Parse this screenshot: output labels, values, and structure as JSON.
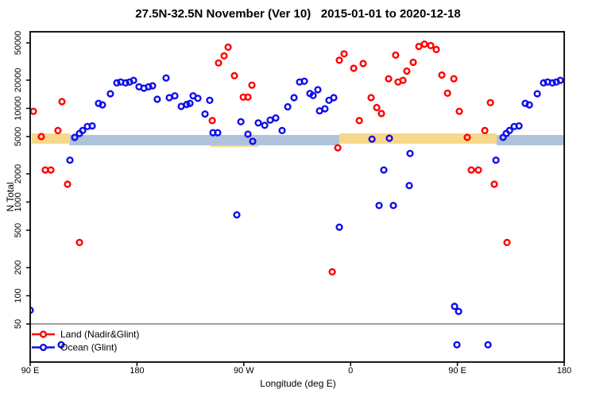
{
  "title": "27.5N-32.5N November (Ver 10)   2015-01-01 to 2020-12-18",
  "axes": {
    "x": {
      "label": "Longitude (deg E)",
      "ticks": [
        {
          "deg": 90,
          "label": "90 E"
        },
        {
          "deg": 180,
          "label": "180"
        },
        {
          "deg": 270,
          "label": "90 W"
        },
        {
          "deg": 360,
          "label": "0"
        },
        {
          "deg": 450,
          "label": "90 E"
        },
        {
          "deg": 540,
          "label": "180"
        }
      ]
    },
    "y": {
      "label": "N Total",
      "scale": "log",
      "ticks": [
        50000,
        20000,
        10000,
        5000,
        2000,
        1000,
        500,
        200,
        100,
        50
      ]
    }
  },
  "legend": {
    "items": [
      {
        "label": "Land (Nadir&Glint)",
        "color": "#FF0000"
      },
      {
        "label": "Ocean (Glint)",
        "color": "#0F0FEB"
      }
    ]
  },
  "colors": {
    "land": "#FF0000",
    "ocean": "#0F0FEB",
    "band_land": "#F7D78C",
    "band_ocean": "#AEC3DB",
    "threshold": "#808080",
    "axis": "#000000",
    "background": "#FFFFFF"
  },
  "chart_data": {
    "type": "scatter",
    "title": "27.5N-32.5N November (Ver 10)   2015-01-01 to 2020-12-18",
    "xlabel": "Longitude (deg E)",
    "ylabel": "N Total",
    "x_axis_deg_range": [
      90,
      540
    ],
    "x_axis_note": "Axis spans 450 deg of longitude eastward: 90E -> 180 -> 90W -> 0 -> 90E -> 180; the 90E-180 segment repeats at both ends",
    "y_scale": "log",
    "ylim": [
      20,
      55000
    ],
    "grid": false,
    "legend_position": "bottom-left",
    "threshold_line": {
      "n": 50
    },
    "bands": {
      "approx_n_range": [
        4200,
        5200
      ],
      "ocean_segments_deg": [
        [
          122.8,
          350.5
        ],
        [
          483.1,
          540.0
        ]
      ],
      "land_segments_deg": [
        [
          91.3,
          123.5
        ],
        [
          350.5,
          483.1
        ]
      ],
      "land_under_segments_deg": [
        [
          242.0,
          282.2
        ]
      ]
    },
    "series": [
      {
        "name": "Land (Nadir&Glint)",
        "color": "#FF0000",
        "points": [
          [
            92.7,
            9300
          ],
          [
            99.4,
            5000
          ],
          [
            102.7,
            2200
          ],
          [
            107.4,
            2200
          ],
          [
            113.4,
            5800
          ],
          [
            116.8,
            11800
          ],
          [
            121.5,
            1550
          ],
          [
            131.5,
            370
          ],
          [
            243.4,
            7400
          ],
          [
            248.7,
            30500
          ],
          [
            253.4,
            36300
          ],
          [
            256.8,
            45000
          ],
          [
            262.1,
            22300
          ],
          [
            269.5,
            13200
          ],
          [
            273.5,
            13200
          ],
          [
            276.8,
            17700
          ],
          [
            344.5,
            180
          ],
          [
            349.2,
            3800
          ],
          [
            350.5,
            32600
          ],
          [
            354.5,
            38200
          ],
          [
            362.6,
            26800
          ],
          [
            367.3,
            7400
          ],
          [
            370.6,
            30100
          ],
          [
            377.3,
            13000
          ],
          [
            382.0,
            10200
          ],
          [
            386.0,
            8800
          ],
          [
            392.0,
            20700
          ],
          [
            398.0,
            37000
          ],
          [
            400.0,
            19100
          ],
          [
            404.1,
            19900
          ],
          [
            407.4,
            25000
          ],
          [
            412.8,
            31000
          ],
          [
            417.5,
            45800
          ],
          [
            422.2,
            48500
          ],
          [
            427.5,
            46800
          ],
          [
            432.2,
            42400
          ],
          [
            436.9,
            22700
          ],
          [
            441.6,
            14500
          ],
          [
            447.0,
            20700
          ],
          [
            451.6,
            9300
          ],
          [
            458.3,
            4900
          ],
          [
            461.7,
            2200
          ],
          [
            467.7,
            2200
          ],
          [
            473.1,
            5800
          ],
          [
            477.8,
            11500
          ],
          [
            481.1,
            1550
          ],
          [
            491.8,
            370
          ]
        ]
      },
      {
        "name": "Ocean (Glint)",
        "color": "#0F0FEB",
        "points": [
          [
            90.0,
            70
          ],
          [
            116.1,
            30
          ],
          [
            123.5,
            2800
          ],
          [
            127.5,
            4900
          ],
          [
            131.5,
            5400
          ],
          [
            134.2,
            5800
          ],
          [
            138.2,
            6400
          ],
          [
            142.2,
            6500
          ],
          [
            147.6,
            11300
          ],
          [
            150.9,
            10900
          ],
          [
            157.6,
            14300
          ],
          [
            163.0,
            18700
          ],
          [
            166.3,
            19100
          ],
          [
            170.4,
            18700
          ],
          [
            173.7,
            19100
          ],
          [
            177.1,
            19900
          ],
          [
            181.7,
            17000
          ],
          [
            185.8,
            16400
          ],
          [
            189.8,
            17000
          ],
          [
            193.1,
            17400
          ],
          [
            197.1,
            12500
          ],
          [
            204.5,
            21100
          ],
          [
            207.2,
            13000
          ],
          [
            211.9,
            13600
          ],
          [
            217.2,
            10500
          ],
          [
            221.9,
            11000
          ],
          [
            224.6,
            11300
          ],
          [
            227.3,
            13600
          ],
          [
            231.3,
            12800
          ],
          [
            237.3,
            8700
          ],
          [
            241.3,
            12200
          ],
          [
            244.0,
            5500
          ],
          [
            248.0,
            5500
          ],
          [
            264.1,
            730
          ],
          [
            267.5,
            7200
          ],
          [
            273.5,
            5300
          ],
          [
            277.5,
            4450
          ],
          [
            282.2,
            7000
          ],
          [
            287.6,
            6600
          ],
          [
            292.2,
            7500
          ],
          [
            296.9,
            7900
          ],
          [
            302.3,
            5800
          ],
          [
            307.0,
            10400
          ],
          [
            312.3,
            13000
          ],
          [
            317.0,
            19100
          ],
          [
            321.0,
            19500
          ],
          [
            325.7,
            14400
          ],
          [
            328.4,
            13700
          ],
          [
            332.4,
            15800
          ],
          [
            333.8,
            9400
          ],
          [
            338.4,
            9900
          ],
          [
            341.8,
            12200
          ],
          [
            345.8,
            13000
          ],
          [
            350.5,
            540
          ],
          [
            378.0,
            4700
          ],
          [
            384.0,
            920
          ],
          [
            388.0,
            2200
          ],
          [
            392.7,
            4800
          ],
          [
            396.0,
            920
          ],
          [
            409.4,
            1500
          ],
          [
            410.1,
            3300
          ],
          [
            447.6,
            77
          ],
          [
            449.6,
            30
          ],
          [
            451.0,
            68
          ],
          [
            475.8,
            30
          ],
          [
            482.5,
            2800
          ],
          [
            488.5,
            4900
          ],
          [
            491.2,
            5400
          ],
          [
            493.9,
            5800
          ],
          [
            497.9,
            6400
          ],
          [
            501.9,
            6500
          ],
          [
            507.2,
            11300
          ],
          [
            510.6,
            10900
          ],
          [
            517.3,
            14300
          ],
          [
            522.6,
            18700
          ],
          [
            526.0,
            19100
          ],
          [
            530.0,
            18700
          ],
          [
            533.4,
            19100
          ],
          [
            536.7,
            19900
          ]
        ]
      }
    ]
  }
}
